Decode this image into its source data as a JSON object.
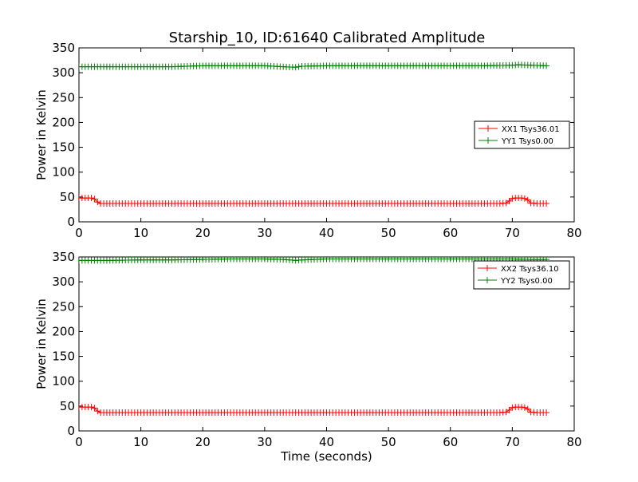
{
  "figure": {
    "title": "Starship_10, ID:61640 Calibrated Amplitude"
  },
  "chart_data": [
    {
      "type": "line",
      "title": "Starship_10, ID:61640 Calibrated Amplitude",
      "xlabel": "",
      "ylabel": "Power in Kelvin",
      "xlim": [
        0,
        80
      ],
      "ylim": [
        0,
        350
      ],
      "xticks": [
        0,
        10,
        20,
        30,
        40,
        50,
        60,
        70,
        80
      ],
      "yticks": [
        0,
        50,
        100,
        150,
        200,
        250,
        300,
        350
      ],
      "grid": false,
      "legend_position": "right",
      "series": [
        {
          "name": "XX1 Tsys36.01",
          "color": "#ff0000",
          "marker": "plus",
          "x": [
            0,
            0.5,
            1,
            1.5,
            2,
            2.5,
            3,
            3.5,
            4,
            5,
            10,
            20,
            30,
            40,
            50,
            60,
            65,
            68,
            69,
            69.5,
            70,
            70.5,
            71,
            71.5,
            72,
            72.5,
            73,
            74,
            75,
            75.5
          ],
          "y": [
            48,
            48,
            48,
            48,
            48,
            46,
            40,
            37,
            37,
            37,
            37,
            37,
            37,
            37,
            37,
            37,
            37,
            37,
            38,
            42,
            47,
            48,
            48,
            48,
            47,
            44,
            38,
            37,
            37,
            37
          ]
        },
        {
          "name": "YY1 Tsys0.00",
          "color": "#008000",
          "marker": "plus",
          "x": [
            0,
            5,
            10,
            15,
            20,
            25,
            30,
            33,
            35,
            36,
            40,
            45,
            50,
            55,
            60,
            65,
            70,
            71,
            73,
            75.5
          ],
          "y": [
            312,
            312,
            312,
            312,
            314,
            314,
            314,
            312,
            311,
            313,
            314,
            314,
            314,
            314,
            314,
            314,
            315,
            316,
            315,
            314
          ]
        }
      ]
    },
    {
      "type": "line",
      "title": "",
      "xlabel": "Time (seconds)",
      "ylabel": "Power in Kelvin",
      "xlim": [
        0,
        80
      ],
      "ylim": [
        0,
        350
      ],
      "xticks": [
        0,
        10,
        20,
        30,
        40,
        50,
        60,
        70,
        80
      ],
      "yticks": [
        0,
        50,
        100,
        150,
        200,
        250,
        300,
        350
      ],
      "grid": false,
      "legend_position": "top-right",
      "series": [
        {
          "name": "XX2 Tsys36.10",
          "color": "#ff0000",
          "marker": "plus",
          "x": [
            0,
            0.5,
            1,
            1.5,
            2,
            2.5,
            3,
            3.5,
            4,
            5,
            10,
            20,
            30,
            40,
            50,
            60,
            65,
            68,
            69,
            69.5,
            70,
            70.5,
            71,
            71.5,
            72,
            72.5,
            73,
            74,
            75,
            75.5
          ],
          "y": [
            48,
            48,
            48,
            48,
            48,
            46,
            40,
            37,
            37,
            37,
            37,
            37,
            37,
            37,
            37,
            37,
            37,
            37,
            38,
            42,
            47,
            48,
            48,
            48,
            47,
            44,
            38,
            37,
            37,
            37
          ]
        },
        {
          "name": "YY2 Tsys0.00",
          "color": "#008000",
          "marker": "plus",
          "x": [
            0,
            5,
            10,
            15,
            20,
            25,
            30,
            33,
            35,
            36,
            40,
            45,
            50,
            55,
            60,
            65,
            70,
            73,
            75.5
          ],
          "y": [
            343,
            343,
            344,
            344,
            345,
            346,
            346,
            345,
            343,
            344,
            346,
            346,
            346,
            346,
            346,
            346,
            346,
            345,
            345
          ]
        }
      ]
    }
  ]
}
